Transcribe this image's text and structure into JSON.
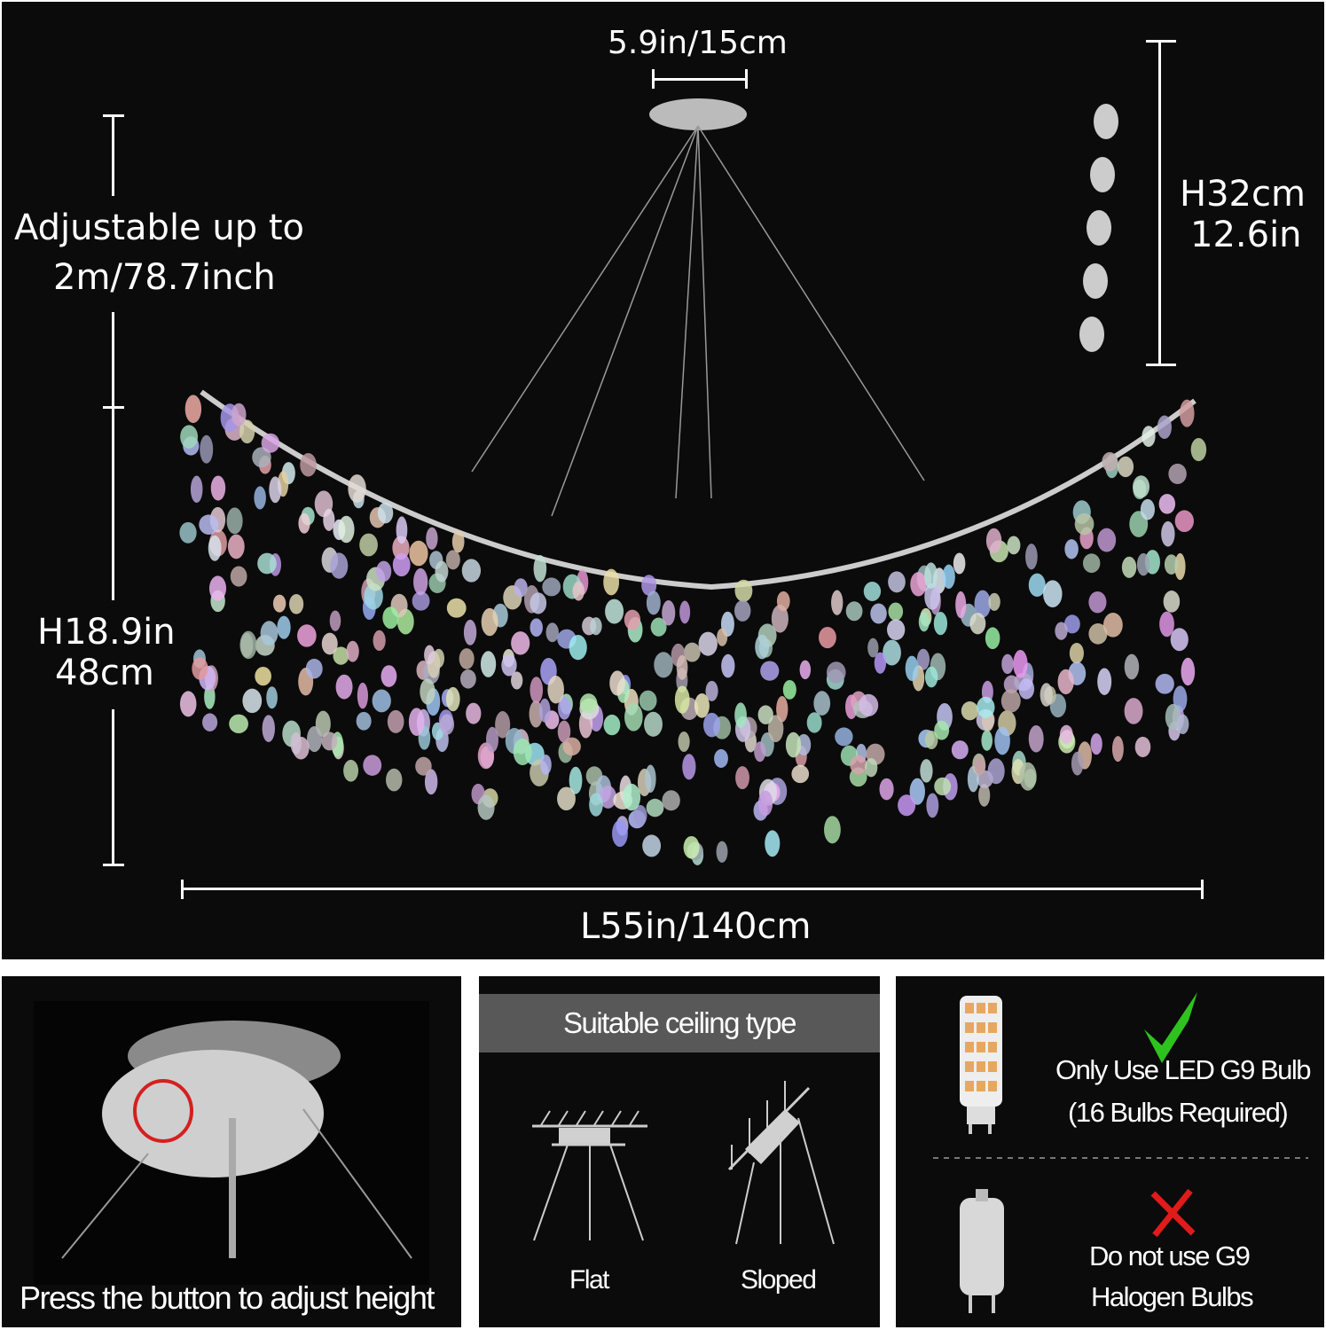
{
  "top": {
    "canopy_width": "5.9in/15cm",
    "adjustable_line1": "Adjustable up to",
    "adjustable_line2": "2m/78.7inch",
    "body_height_in": "H18.9in",
    "body_height_cm": "48cm",
    "strand_height_cm": "H32cm",
    "strand_height_in": "12.6in",
    "length": "L55in/140cm"
  },
  "panel_adjust": {
    "caption": "Press the button to adjust height",
    "highlight_color": "#d42020"
  },
  "panel_ceiling": {
    "title": "Suitable ceiling type",
    "options": [
      "Flat",
      "Sloped"
    ]
  },
  "panel_bulbs": {
    "ok_line1": "Only Use LED G9 Bulb",
    "ok_line2": "(16 Bulbs Required)",
    "no_line1": "Do not use G9",
    "no_line2": "Halogen Bulbs",
    "check_color": "#2fc21f",
    "cross_color": "#e01b1b"
  }
}
